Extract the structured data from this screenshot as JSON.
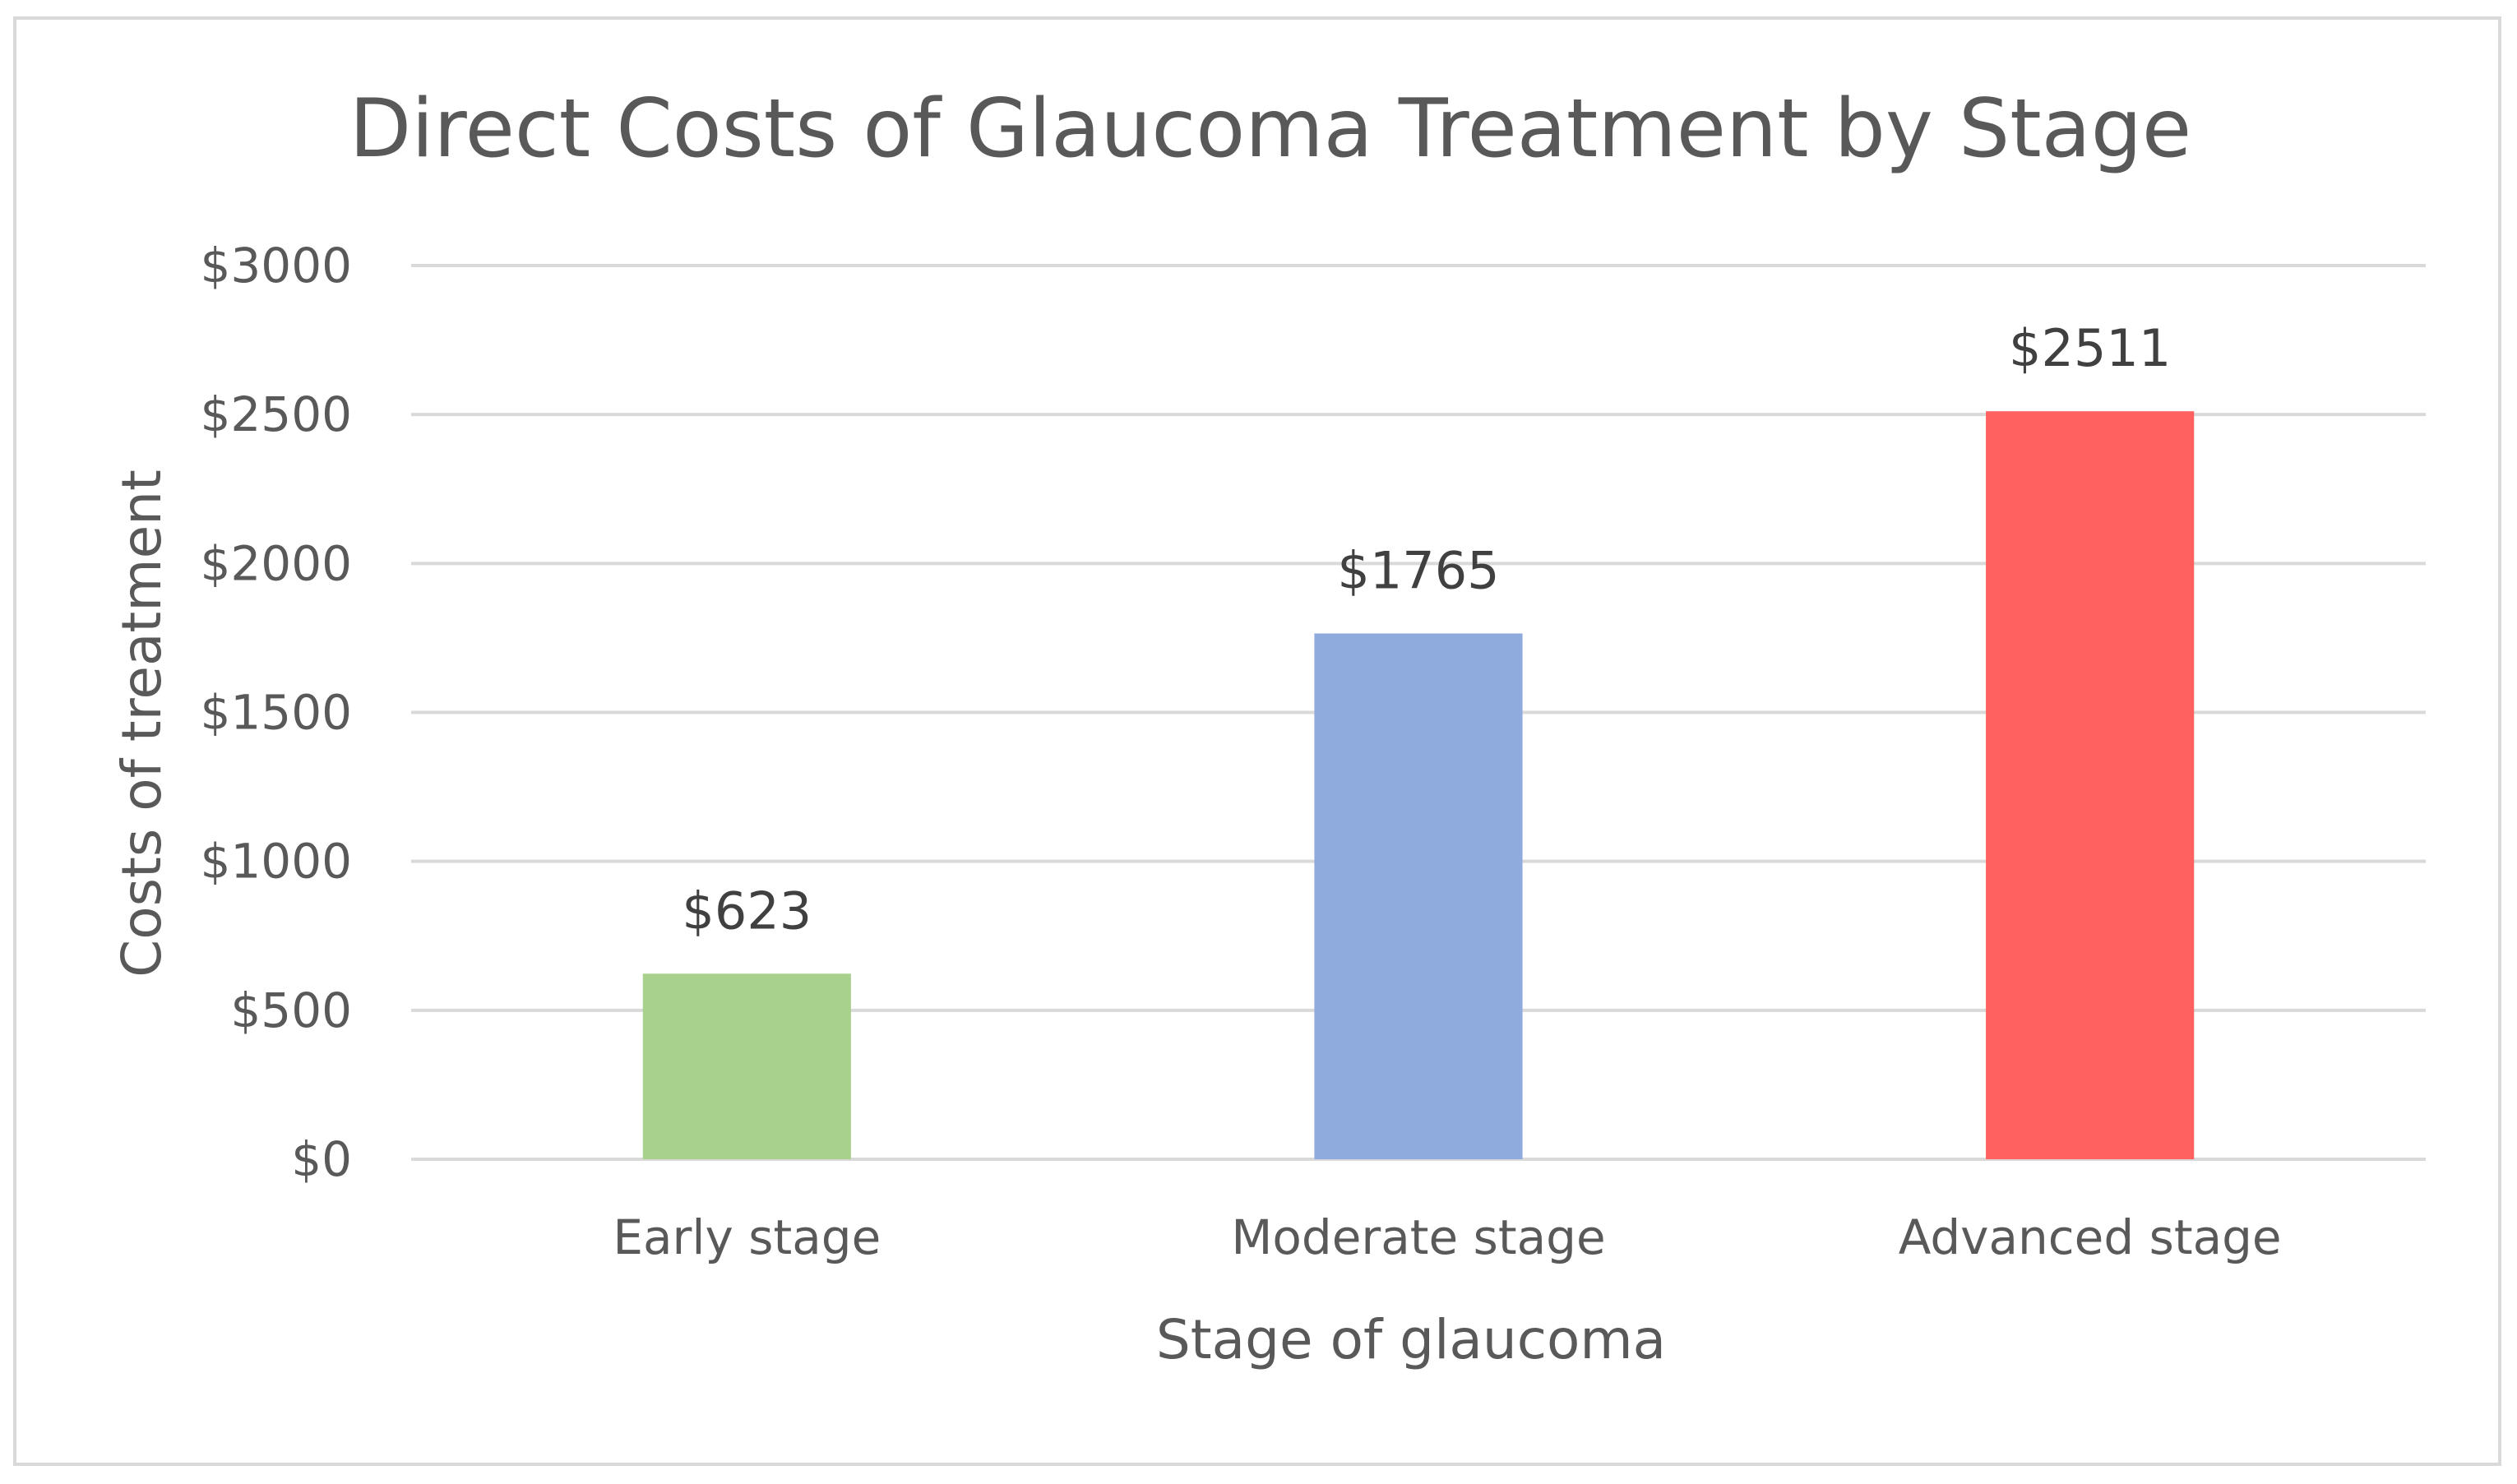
{
  "chart_data": {
    "type": "bar",
    "title": "Direct Costs of Glaucoma Treatment by Stage",
    "xlabel": "Stage of glaucoma",
    "ylabel": "Costs of treatment",
    "categories": [
      "Early stage",
      "Moderate stage",
      "Advanced stage"
    ],
    "values": [
      623,
      1765,
      2511
    ],
    "data_labels": [
      "$623",
      "$1765",
      "$2511"
    ],
    "bar_colors": [
      "#a9d18e",
      "#8faadc",
      "#ff6161"
    ],
    "ylim": [
      0,
      3000
    ],
    "yticks": [
      0,
      500,
      1000,
      1500,
      2000,
      2500,
      3000
    ],
    "ytick_labels": [
      "$0",
      "$500",
      "$1000",
      "$1500",
      "$2000",
      "$2500",
      "$3000"
    ],
    "grid": true,
    "legend": "none"
  }
}
